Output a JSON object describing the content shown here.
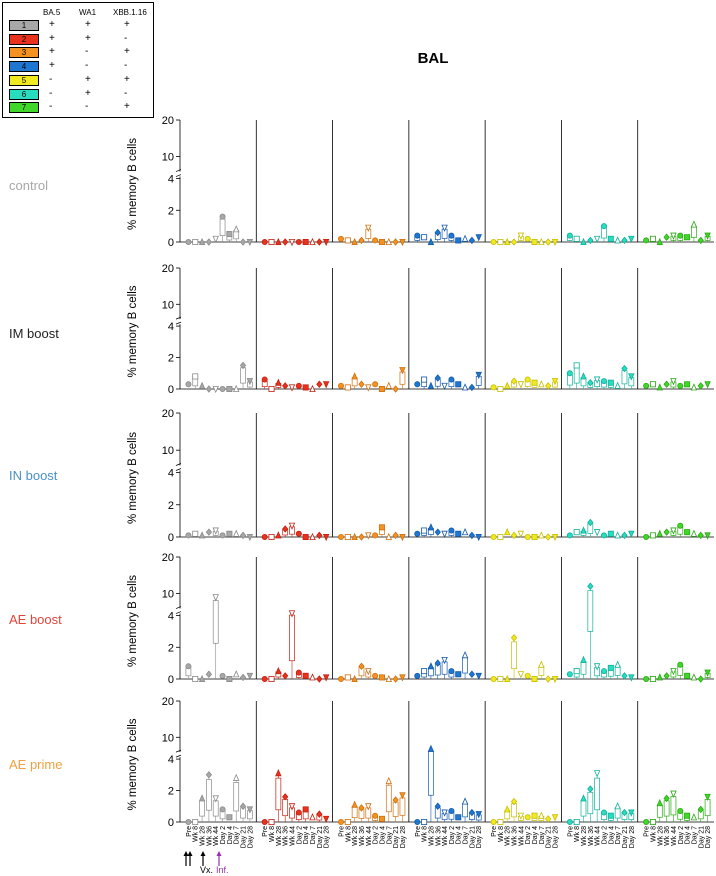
{
  "figure": {
    "title": "BAL",
    "ylabel": "% memory B cells",
    "arrow_vx_label": "Vx.",
    "arrow_inf_label": "Inf."
  },
  "legend": {
    "headers": [
      "BA.5",
      "WA1",
      "XBB.1.16"
    ],
    "rows": [
      {
        "id": "1",
        "color": "#a8a8a8",
        "marks": [
          "+",
          "+",
          "+"
        ]
      },
      {
        "id": "2",
        "color": "#e8321e",
        "marks": [
          "+",
          "+",
          "-"
        ]
      },
      {
        "id": "3",
        "color": "#f39220",
        "marks": [
          "+",
          "-",
          "+"
        ]
      },
      {
        "id": "4",
        "color": "#1e78d2",
        "marks": [
          "+",
          "-",
          "-"
        ]
      },
      {
        "id": "5",
        "color": "#f2ea20",
        "marks": [
          "-",
          "+",
          "+"
        ]
      },
      {
        "id": "6",
        "color": "#28dcc0",
        "marks": [
          "-",
          "+",
          "-"
        ]
      },
      {
        "id": "7",
        "color": "#41d62a",
        "marks": [
          "-",
          "-",
          "+"
        ]
      }
    ]
  },
  "groups": [
    {
      "label": "control",
      "color": "#a8a8a8"
    },
    {
      "label": "IM boost",
      "color": "#222222"
    },
    {
      "label": "IN boost",
      "color": "#4a8fc8"
    },
    {
      "label": "AE boost",
      "color": "#e0453a"
    },
    {
      "label": "AE prime",
      "color": "#f0a040"
    }
  ],
  "chart_data": {
    "type": "box",
    "title": "BAL",
    "ylabel": "% memory B cells",
    "y_ticks": [
      0,
      2,
      4,
      10,
      20
    ],
    "y_axis": "broken: 0-4 linear, 4-20 compressed",
    "timepoints": [
      "Pre",
      "Wk 8",
      "Wk 28",
      "Wk 36",
      "Wk 44",
      "Day 2",
      "Day 4",
      "Day 7",
      "Day 21",
      "Day 28"
    ],
    "series": [
      "1",
      "2",
      "3",
      "4",
      "5",
      "6",
      "7"
    ],
    "values": {
      "control": [
        [
          0,
          0,
          0,
          0,
          0.2,
          1.6,
          0.5,
          0.8,
          0,
          0
        ],
        [
          0,
          0,
          0,
          0,
          0,
          0,
          0,
          0,
          0,
          0
        ],
        [
          0.2,
          0.1,
          0,
          0.1,
          0.9,
          0.1,
          0,
          0,
          0,
          0
        ],
        [
          0.4,
          0.3,
          0,
          0.6,
          0.9,
          0.4,
          0.1,
          0.2,
          0.1,
          0.3
        ],
        [
          0,
          0,
          0,
          0,
          0.4,
          0.2,
          0,
          0,
          0,
          0
        ],
        [
          0.4,
          0.2,
          0,
          0.1,
          0.2,
          1.0,
          0.2,
          0.1,
          0.1,
          0.2
        ],
        [
          0.1,
          0.2,
          0,
          0.3,
          0.4,
          0.4,
          0.3,
          1.1,
          0.1,
          0.4
        ]
      ],
      "IM boost": [
        [
          0.3,
          0.8,
          0.2,
          0,
          0,
          0,
          0,
          0,
          1.5,
          0.5
        ],
        [
          0.6,
          0,
          0.4,
          0.2,
          0.1,
          0.2,
          0.1,
          0,
          0.3,
          0.3
        ],
        [
          0.2,
          0.1,
          0.8,
          0.3,
          0.1,
          0.3,
          0,
          0.2,
          0,
          1.2
        ],
        [
          0.3,
          0.6,
          0.2,
          0.7,
          0.2,
          0.6,
          0.3,
          0.1,
          0.1,
          0.9
        ],
        [
          0.1,
          0,
          0.2,
          0.5,
          0.3,
          0.6,
          0.4,
          0.3,
          0.2,
          0.5
        ],
        [
          1.0,
          1.5,
          0.8,
          0.4,
          0.6,
          0.5,
          0.4,
          0.2,
          1.3,
          0.8
        ],
        [
          0.2,
          0.3,
          0.1,
          0.3,
          0.5,
          0.2,
          0.3,
          0.1,
          0.2,
          0.3
        ]
      ],
      "IN boost": [
        [
          0.1,
          0.2,
          0.1,
          0.3,
          0.4,
          0.1,
          0.2,
          0.2,
          0.1,
          0
        ],
        [
          0,
          0,
          0.1,
          0.5,
          0.7,
          0.2,
          0,
          0,
          0.1,
          0
        ],
        [
          0,
          0,
          0,
          0,
          0.1,
          0.1,
          0.6,
          0,
          0.1,
          0
        ],
        [
          0.2,
          0.4,
          0.6,
          0.3,
          0.2,
          0.4,
          0.2,
          0.3,
          0.1,
          0
        ],
        [
          0,
          0,
          0.3,
          0.1,
          0.2,
          0,
          0,
          0.1,
          0,
          0
        ],
        [
          0.1,
          0.3,
          0.4,
          0.9,
          0.3,
          0.1,
          0.2,
          0.1,
          0.1,
          0.2
        ],
        [
          0,
          0.1,
          0.2,
          0.3,
          0.4,
          0.7,
          0.3,
          0.2,
          0.1,
          0.1
        ]
      ],
      "AE boost": [
        [
          0.8,
          0,
          0,
          0.3,
          9.0,
          0.2,
          0,
          0.3,
          0.1,
          0.2
        ],
        [
          0,
          0,
          0.5,
          0.2,
          4.6,
          0.4,
          0.2,
          0.1,
          0,
          0.1
        ],
        [
          0,
          0.1,
          0,
          0.8,
          0.5,
          0.2,
          0.1,
          0,
          0,
          0.1
        ],
        [
          0.2,
          0.5,
          0.8,
          1.0,
          1.2,
          0.5,
          0.3,
          1.5,
          0.3,
          0.2
        ],
        [
          0,
          0,
          0,
          2.6,
          0.3,
          0.2,
          0,
          0.9,
          0,
          0
        ],
        [
          0.3,
          0.5,
          1.2,
          12.0,
          0.8,
          0.5,
          0.7,
          0.9,
          0.2,
          0.1
        ],
        [
          0,
          0,
          0.1,
          0.2,
          0.5,
          0.9,
          0.2,
          0.1,
          0,
          0.4
        ]
      ],
      "AE prime": [
        [
          0,
          0,
          1.5,
          3.0,
          1.5,
          0.8,
          0.3,
          2.8,
          1.0,
          0.8
        ],
        [
          0,
          0,
          3.1,
          1.6,
          1.0,
          0.6,
          0.8,
          0.3,
          0.5,
          0.2
        ],
        [
          0,
          0,
          1.1,
          0.9,
          1.0,
          0.4,
          0.2,
          2.6,
          1.4,
          1.7
        ],
        [
          0,
          0,
          6.8,
          1.0,
          0.6,
          0.7,
          0.3,
          1.3,
          0.6,
          0.5
        ],
        [
          0,
          0,
          0.8,
          1.3,
          0.4,
          0.3,
          0.4,
          0.4,
          0.2,
          0.3
        ],
        [
          0,
          0,
          1.5,
          2.1,
          3.1,
          0.6,
          0.4,
          1.0,
          0.6,
          0.6
        ],
        [
          0,
          0,
          1.2,
          1.5,
          1.8,
          0.7,
          0.4,
          0.3,
          0.8,
          1.6
        ]
      ]
    }
  }
}
